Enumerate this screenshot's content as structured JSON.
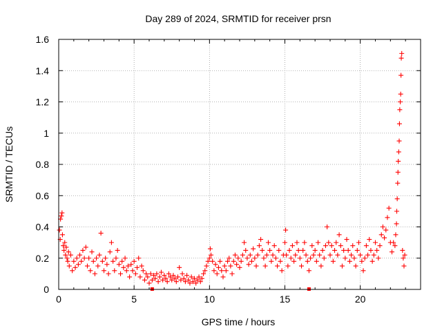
{
  "chart_data": {
    "type": "scatter",
    "title": "Day 289 of 2024, SRMTID for receiver prsn",
    "xlabel": "GPS time / hours",
    "ylabel": "SRMTID / TECUs",
    "xlim": [
      0,
      24
    ],
    "ylim": [
      0,
      1.6
    ],
    "x_ticks": [
      0,
      5,
      10,
      15,
      20
    ],
    "x_tick_labels": [
      "0",
      "5",
      "10",
      "15",
      "20"
    ],
    "y_ticks": [
      0,
      0.2,
      0.4,
      0.6,
      0.8,
      1,
      1.2,
      1.4,
      1.6
    ],
    "y_tick_labels": [
      "0",
      "0.2",
      "0.4",
      "0.6",
      "0.8",
      "1",
      "1.2",
      "1.4",
      "1.6"
    ],
    "grid": true,
    "marker": "plus",
    "color": "#ff0000",
    "series": [
      {
        "name": "SRMTID",
        "points": [
          [
            0.05,
            0.38
          ],
          [
            0.1,
            0.32
          ],
          [
            0.12,
            0.45
          ],
          [
            0.18,
            0.47
          ],
          [
            0.22,
            0.49
          ],
          [
            0.25,
            0.35
          ],
          [
            0.3,
            0.28
          ],
          [
            0.35,
            0.25
          ],
          [
            0.4,
            0.3
          ],
          [
            0.45,
            0.22
          ],
          [
            0.5,
            0.27
          ],
          [
            0.55,
            0.2
          ],
          [
            0.6,
            0.18
          ],
          [
            0.65,
            0.24
          ],
          [
            0.7,
            0.15
          ],
          [
            0.8,
            0.22
          ],
          [
            0.9,
            0.12
          ],
          [
            1.0,
            0.18
          ],
          [
            1.1,
            0.14
          ],
          [
            1.2,
            0.2
          ],
          [
            1.3,
            0.16
          ],
          [
            1.4,
            0.22
          ],
          [
            1.5,
            0.18
          ],
          [
            1.6,
            0.25
          ],
          [
            1.7,
            0.2
          ],
          [
            1.8,
            0.27
          ],
          [
            1.9,
            0.15
          ],
          [
            2.0,
            0.2
          ],
          [
            2.1,
            0.12
          ],
          [
            2.2,
            0.24
          ],
          [
            2.3,
            0.18
          ],
          [
            2.4,
            0.1
          ],
          [
            2.5,
            0.2
          ],
          [
            2.6,
            0.15
          ],
          [
            2.7,
            0.22
          ],
          [
            2.8,
            0.36
          ],
          [
            2.9,
            0.18
          ],
          [
            3.0,
            0.12
          ],
          [
            3.1,
            0.2
          ],
          [
            3.2,
            0.16
          ],
          [
            3.3,
            0.1
          ],
          [
            3.4,
            0.24
          ],
          [
            3.5,
            0.3
          ],
          [
            3.6,
            0.18
          ],
          [
            3.7,
            0.12
          ],
          [
            3.8,
            0.2
          ],
          [
            3.9,
            0.25
          ],
          [
            4.0,
            0.16
          ],
          [
            4.1,
            0.1
          ],
          [
            4.2,
            0.18
          ],
          [
            4.3,
            0.14
          ],
          [
            4.4,
            0.2
          ],
          [
            4.5,
            0.12
          ],
          [
            4.6,
            0.15
          ],
          [
            4.7,
            0.08
          ],
          [
            4.8,
            0.16
          ],
          [
            4.9,
            0.12
          ],
          [
            5.0,
            0.18
          ],
          [
            5.1,
            0.1
          ],
          [
            5.2,
            0.14
          ],
          [
            5.3,
            0.2
          ],
          [
            5.4,
            0.08
          ],
          [
            5.5,
            0.15
          ],
          [
            5.6,
            0.12
          ],
          [
            5.7,
            0.06
          ],
          [
            5.8,
            0.1
          ],
          [
            5.9,
            0.08
          ],
          [
            6.0,
            0.04
          ],
          [
            6.1,
            0.1
          ],
          [
            6.2,
            0.06
          ],
          [
            6.3,
            0.09
          ],
          [
            6.4,
            0.07
          ],
          [
            6.5,
            0.1
          ],
          [
            6.6,
            0.05
          ],
          [
            6.7,
            0.08
          ],
          [
            6.8,
            0.11
          ],
          [
            6.9,
            0.06
          ],
          [
            7.0,
            0.09
          ],
          [
            7.1,
            0.07
          ],
          [
            7.2,
            0.05
          ],
          [
            7.3,
            0.1
          ],
          [
            7.4,
            0.08
          ],
          [
            7.5,
            0.06
          ],
          [
            7.6,
            0.09
          ],
          [
            7.7,
            0.07
          ],
          [
            7.8,
            0.05
          ],
          [
            7.9,
            0.08
          ],
          [
            8.0,
            0.14
          ],
          [
            8.1,
            0.06
          ],
          [
            8.2,
            0.1
          ],
          [
            8.3,
            0.07
          ],
          [
            8.4,
            0.05
          ],
          [
            8.5,
            0.09
          ],
          [
            8.6,
            0.06
          ],
          [
            8.7,
            0.04
          ],
          [
            8.8,
            0.08
          ],
          [
            8.9,
            0.05
          ],
          [
            9.0,
            0.07
          ],
          [
            9.1,
            0.04
          ],
          [
            9.2,
            0.06
          ],
          [
            9.3,
            0.08
          ],
          [
            9.4,
            0.05
          ],
          [
            9.5,
            0.07
          ],
          [
            9.6,
            0.1
          ],
          [
            9.7,
            0.12
          ],
          [
            9.8,
            0.15
          ],
          [
            9.9,
            0.18
          ],
          [
            10.0,
            0.2
          ],
          [
            10.05,
            0.26
          ],
          [
            10.1,
            0.22
          ],
          [
            10.2,
            0.18
          ],
          [
            10.3,
            0.12
          ],
          [
            10.4,
            0.16
          ],
          [
            10.5,
            0.1
          ],
          [
            10.6,
            0.14
          ],
          [
            10.7,
            0.18
          ],
          [
            10.8,
            0.12
          ],
          [
            10.9,
            0.08
          ],
          [
            11.0,
            0.15
          ],
          [
            11.1,
            0.12
          ],
          [
            11.2,
            0.18
          ],
          [
            11.3,
            0.2
          ],
          [
            11.4,
            0.15
          ],
          [
            11.5,
            0.1
          ],
          [
            11.6,
            0.18
          ],
          [
            11.7,
            0.22
          ],
          [
            11.8,
            0.16
          ],
          [
            11.9,
            0.2
          ],
          [
            12.0,
            0.14
          ],
          [
            12.1,
            0.18
          ],
          [
            12.2,
            0.22
          ],
          [
            12.3,
            0.3
          ],
          [
            12.4,
            0.25
          ],
          [
            12.5,
            0.2
          ],
          [
            12.6,
            0.16
          ],
          [
            12.7,
            0.22
          ],
          [
            12.8,
            0.18
          ],
          [
            12.9,
            0.26
          ],
          [
            13.0,
            0.2
          ],
          [
            13.1,
            0.15
          ],
          [
            13.2,
            0.22
          ],
          [
            13.3,
            0.28
          ],
          [
            13.4,
            0.32
          ],
          [
            13.5,
            0.25
          ],
          [
            13.6,
            0.2
          ],
          [
            13.7,
            0.15
          ],
          [
            13.8,
            0.22
          ],
          [
            13.9,
            0.3
          ],
          [
            14.0,
            0.25
          ],
          [
            14.1,
            0.18
          ],
          [
            14.2,
            0.22
          ],
          [
            14.3,
            0.28
          ],
          [
            14.4,
            0.2
          ],
          [
            14.5,
            0.15
          ],
          [
            14.6,
            0.25
          ],
          [
            14.7,
            0.18
          ],
          [
            14.8,
            0.12
          ],
          [
            14.9,
            0.22
          ],
          [
            15.0,
            0.3
          ],
          [
            15.05,
            0.38
          ],
          [
            15.1,
            0.22
          ],
          [
            15.2,
            0.15
          ],
          [
            15.3,
            0.25
          ],
          [
            15.4,
            0.2
          ],
          [
            15.5,
            0.28
          ],
          [
            15.6,
            0.18
          ],
          [
            15.7,
            0.22
          ],
          [
            15.8,
            0.3
          ],
          [
            15.9,
            0.25
          ],
          [
            16.0,
            0.2
          ],
          [
            16.1,
            0.15
          ],
          [
            16.2,
            0.25
          ],
          [
            16.3,
            0.3
          ],
          [
            16.4,
            0.22
          ],
          [
            16.5,
            0.18
          ],
          [
            16.6,
            0.12
          ],
          [
            16.7,
            0.2
          ],
          [
            16.8,
            0.28
          ],
          [
            16.9,
            0.22
          ],
          [
            17.0,
            0.25
          ],
          [
            17.1,
            0.18
          ],
          [
            17.2,
            0.3
          ],
          [
            17.3,
            0.22
          ],
          [
            17.4,
            0.15
          ],
          [
            17.5,
            0.25
          ],
          [
            17.6,
            0.2
          ],
          [
            17.7,
            0.28
          ],
          [
            17.8,
            0.4
          ],
          [
            17.9,
            0.3
          ],
          [
            18.0,
            0.22
          ],
          [
            18.1,
            0.28
          ],
          [
            18.2,
            0.18
          ],
          [
            18.3,
            0.25
          ],
          [
            18.4,
            0.3
          ],
          [
            18.5,
            0.22
          ],
          [
            18.6,
            0.35
          ],
          [
            18.7,
            0.28
          ],
          [
            18.8,
            0.15
          ],
          [
            18.9,
            0.25
          ],
          [
            19.0,
            0.2
          ],
          [
            19.1,
            0.32
          ],
          [
            19.2,
            0.25
          ],
          [
            19.3,
            0.18
          ],
          [
            19.4,
            0.22
          ],
          [
            19.5,
            0.28
          ],
          [
            19.6,
            0.2
          ],
          [
            19.7,
            0.15
          ],
          [
            19.8,
            0.25
          ],
          [
            19.9,
            0.3
          ],
          [
            20.0,
            0.22
          ],
          [
            20.1,
            0.18
          ],
          [
            20.2,
            0.12
          ],
          [
            20.3,
            0.2
          ],
          [
            20.4,
            0.28
          ],
          [
            20.5,
            0.22
          ],
          [
            20.6,
            0.32
          ],
          [
            20.7,
            0.25
          ],
          [
            20.8,
            0.18
          ],
          [
            20.9,
            0.22
          ],
          [
            21.0,
            0.3
          ],
          [
            21.1,
            0.25
          ],
          [
            21.2,
            0.2
          ],
          [
            21.3,
            0.28
          ],
          [
            21.4,
            0.35
          ],
          [
            21.5,
            0.4
          ],
          [
            21.6,
            0.33
          ],
          [
            21.7,
            0.38
          ],
          [
            21.8,
            0.46
          ],
          [
            21.9,
            0.52
          ],
          [
            22.0,
            0.3
          ],
          [
            22.1,
            0.24
          ],
          [
            22.2,
            0.3
          ],
          [
            22.3,
            0.28
          ],
          [
            22.35,
            0.35
          ],
          [
            22.4,
            0.42
          ],
          [
            22.42,
            0.5
          ],
          [
            22.45,
            0.58
          ],
          [
            22.48,
            0.68
          ],
          [
            22.5,
            0.75
          ],
          [
            22.52,
            0.82
          ],
          [
            22.55,
            0.88
          ],
          [
            22.58,
            0.95
          ],
          [
            22.6,
            1.06
          ],
          [
            22.62,
            1.15
          ],
          [
            22.65,
            1.2
          ],
          [
            22.68,
            1.25
          ],
          [
            22.7,
            1.37
          ],
          [
            22.72,
            1.48
          ],
          [
            22.75,
            1.51
          ],
          [
            22.8,
            0.25
          ],
          [
            22.85,
            0.2
          ],
          [
            22.9,
            0.15
          ],
          [
            22.95,
            0.22
          ]
        ]
      }
    ],
    "axis_markers_x": [
      6.2,
      16.6
    ]
  }
}
